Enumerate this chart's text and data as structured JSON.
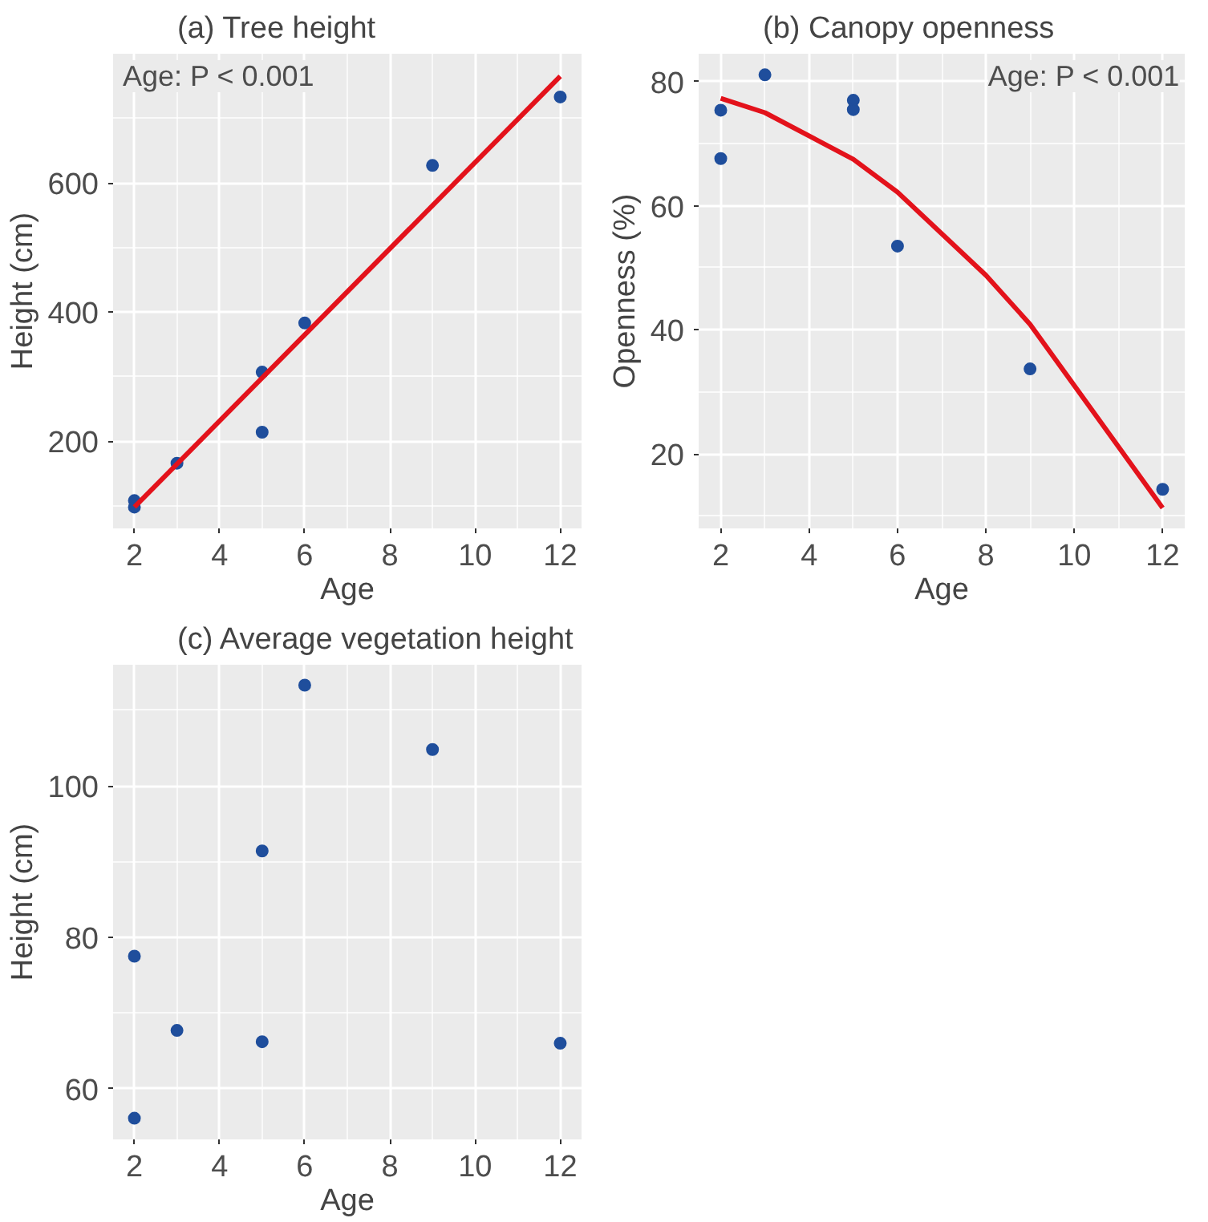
{
  "chart_data": [
    {
      "type": "scatter",
      "title": "(a) Tree height",
      "xlabel": "Age",
      "ylabel": "Height (cm)",
      "annotations": [
        "Age: P < 0.001"
      ],
      "xlim": [
        1.5,
        12.5
      ],
      "ylim": [
        65,
        800
      ],
      "xticks": [
        2,
        4,
        6,
        8,
        10,
        12
      ],
      "yticks": [
        200,
        400,
        600
      ],
      "grid": true,
      "marker": "circle",
      "series": [
        {
          "type": "scatter",
          "color": "#1f4e9c",
          "x": [
            2,
            2,
            3,
            5,
            5,
            6,
            9,
            12
          ],
          "values": [
            108,
            98,
            166,
            307,
            214,
            383,
            627,
            733
          ]
        },
        {
          "type": "line",
          "marker": "none",
          "color": "#e3121b",
          "x": [
            2,
            12
          ],
          "values": [
            98,
            765
          ]
        }
      ]
    },
    {
      "type": "scatter",
      "title": "(b) Canopy openness",
      "xlabel": "Age",
      "ylabel": "Openness (%)",
      "annotations": [
        "Age: P < 0.001"
      ],
      "xlim": [
        1.5,
        12.5
      ],
      "ylim": [
        8,
        84.5
      ],
      "xticks": [
        2,
        4,
        6,
        8,
        10,
        12
      ],
      "yticks": [
        20,
        40,
        60,
        80
      ],
      "grid": true,
      "marker": "circle",
      "series": [
        {
          "type": "scatter",
          "color": "#1f4e9c",
          "x": [
            2,
            2,
            3,
            5,
            5,
            6,
            9,
            12
          ],
          "values": [
            75.4,
            67.6,
            81.1,
            77.0,
            75.5,
            53.5,
            33.7,
            14.3
          ]
        },
        {
          "type": "line",
          "marker": "none",
          "color": "#e3121b",
          "x": [
            2,
            3,
            5,
            6,
            8,
            9,
            12
          ],
          "values": [
            77.3,
            75.0,
            67.5,
            62.2,
            48.8,
            40.9,
            11.3
          ]
        }
      ]
    },
    {
      "type": "scatter",
      "title": "(c) Average vegetation height",
      "xlabel": "Age",
      "ylabel": "Height (cm)",
      "xlim": [
        1.5,
        12.5
      ],
      "ylim": [
        53.3,
        116
      ],
      "xticks": [
        2,
        4,
        6,
        8,
        10,
        12
      ],
      "yticks": [
        60,
        80,
        100
      ],
      "grid": true,
      "marker": "circle",
      "series": [
        {
          "type": "scatter",
          "color": "#1f4e9c",
          "x": [
            2,
            2,
            3,
            5,
            5,
            6,
            9,
            12
          ],
          "values": [
            77.5,
            56.1,
            67.7,
            91.4,
            66.2,
            113.3,
            104.8,
            66.0
          ]
        }
      ]
    }
  ]
}
